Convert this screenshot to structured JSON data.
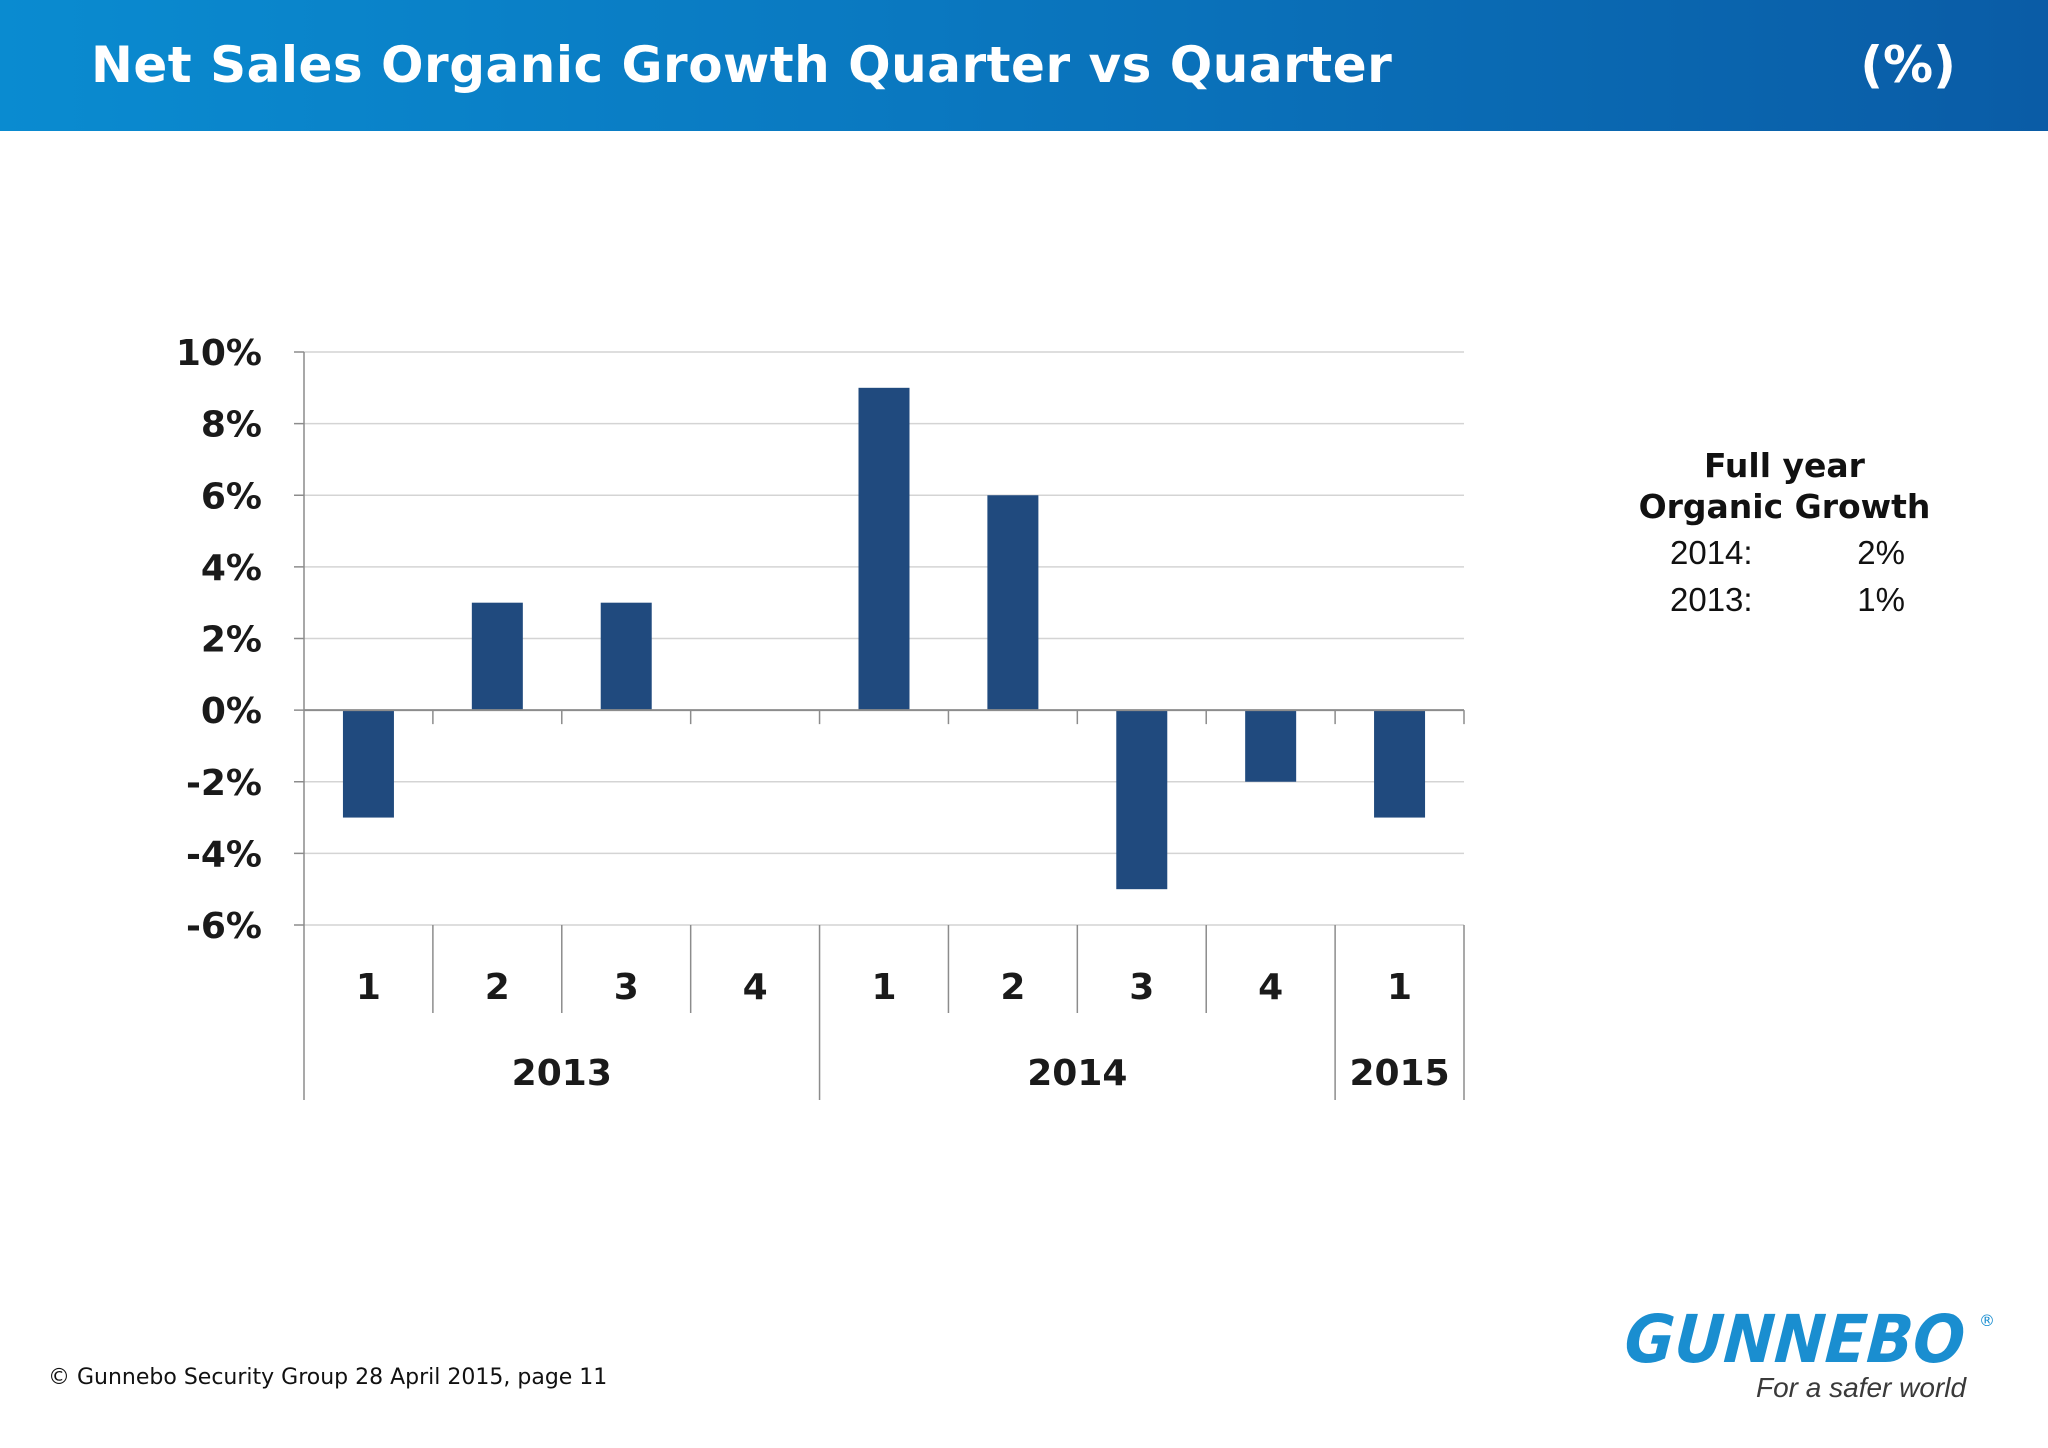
{
  "header": {
    "title": "Net Sales Organic Growth Quarter vs Quarter",
    "unit": "(%)"
  },
  "chart_data": {
    "type": "bar",
    "title": "",
    "xlabel": "",
    "ylabel": "",
    "ylim": [
      -6,
      10
    ],
    "yticks": [
      10,
      8,
      6,
      4,
      2,
      0,
      -2,
      -4,
      -6
    ],
    "ytick_labels": [
      "10%",
      "8%",
      "6%",
      "4%",
      "2%",
      "0%",
      "-2%",
      "-4%",
      "-6%"
    ],
    "categories": [
      "1",
      "2",
      "3",
      "4",
      "1",
      "2",
      "3",
      "4",
      "1"
    ],
    "groups": [
      {
        "label": "2013",
        "count": 4
      },
      {
        "label": "2014",
        "count": 4
      },
      {
        "label": "2015",
        "count": 1
      }
    ],
    "values": [
      -3,
      3,
      3,
      0,
      9,
      6,
      -5,
      -2,
      -3
    ],
    "bar_color": "#204a7e",
    "grid": true,
    "legend": "none"
  },
  "summary": {
    "heading_line1": "Full year",
    "heading_line2": "Organic Growth",
    "rows": [
      {
        "year": "2014:",
        "value": "2%"
      },
      {
        "year": "2013:",
        "value": "1%"
      }
    ]
  },
  "footer": {
    "text": "© Gunnebo Security Group 28 April 2015, page 11"
  },
  "logo": {
    "wordmark": "GUNNEBO",
    "registered": "®",
    "tagline": "For a safer world",
    "color": "#1a8ed0"
  }
}
